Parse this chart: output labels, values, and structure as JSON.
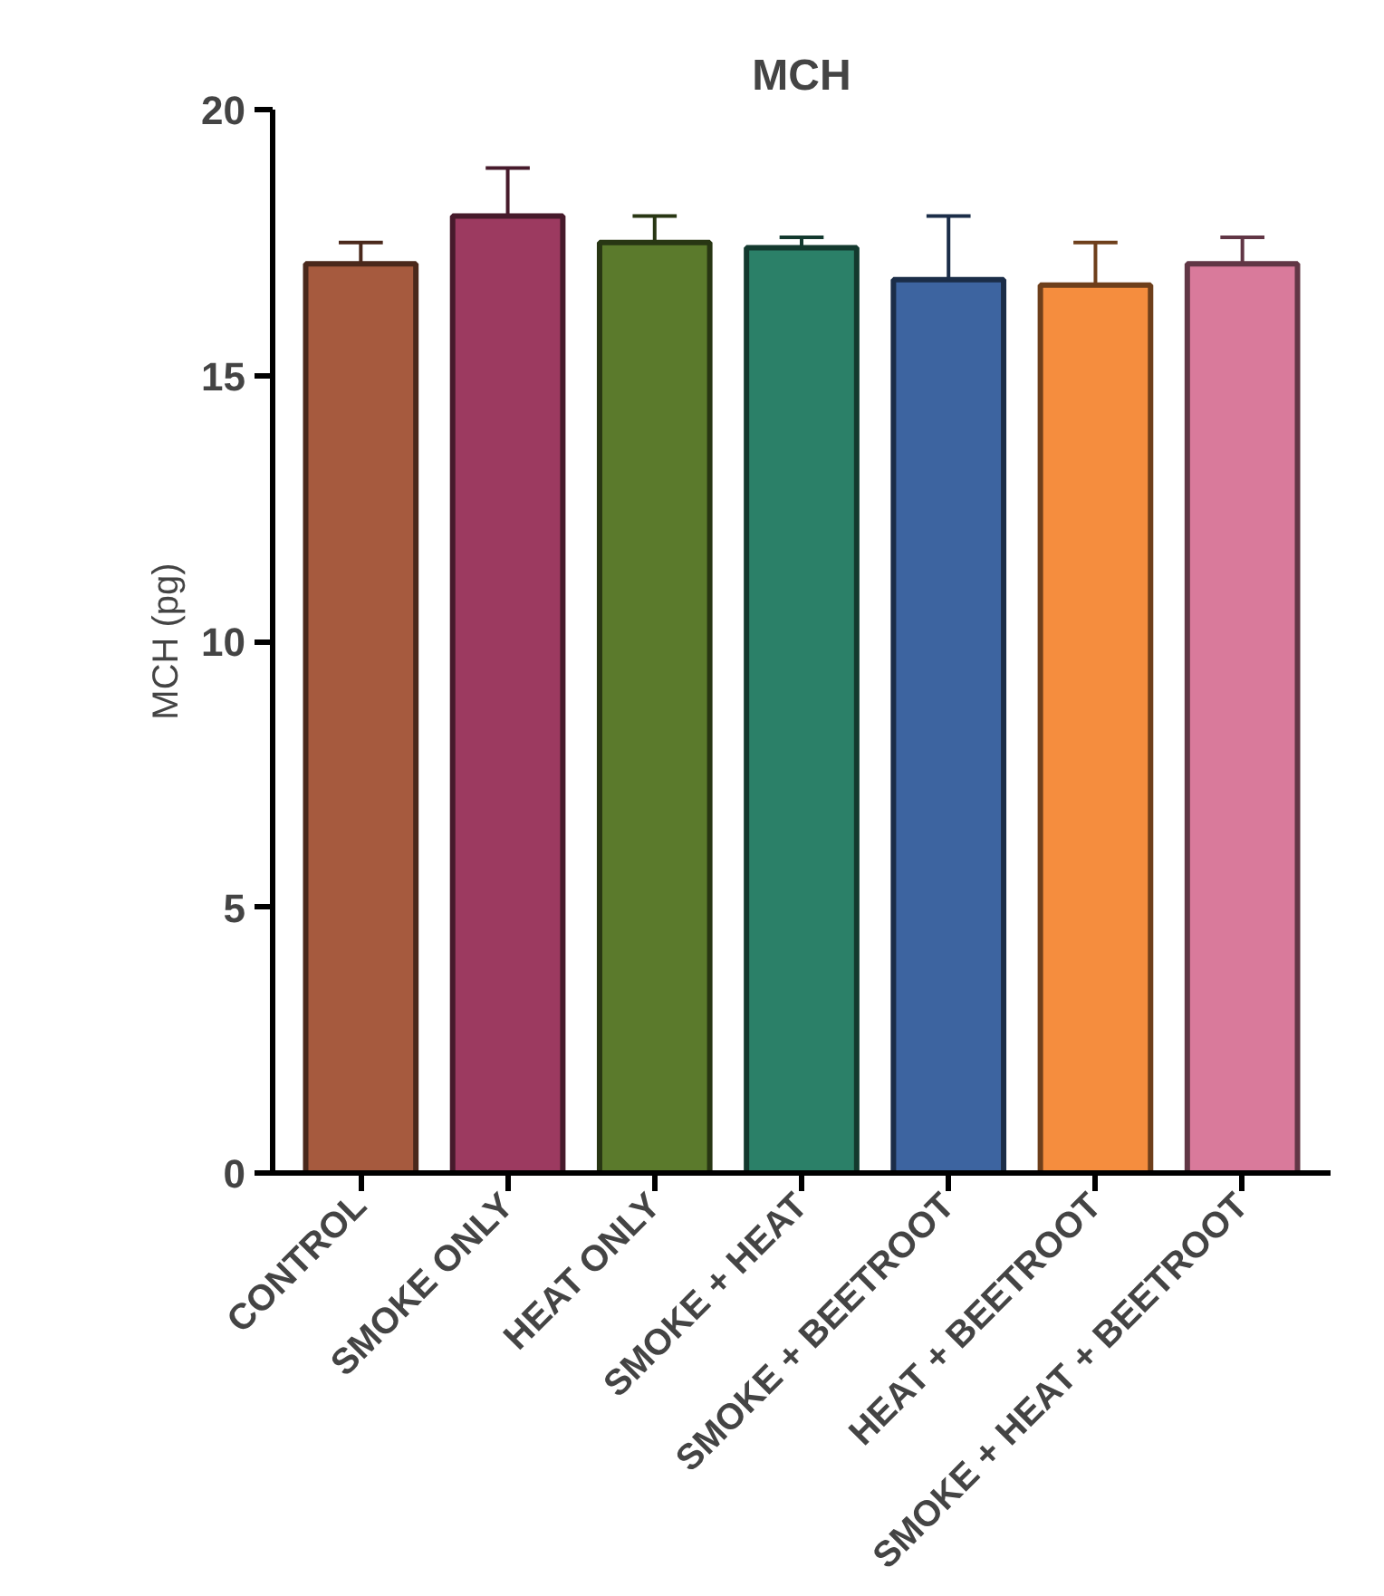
{
  "chart_data": {
    "type": "bar",
    "title": "MCH",
    "ylabel": "MCH (pg)",
    "categories": [
      "CONTROL",
      "SMOKE ONLY",
      "HEAT ONLY",
      "SMOKE + HEAT",
      "SMOKE + BEETROOT",
      "HEAT + BEETROOT",
      "SMOKE + HEAT + BEETROOT"
    ],
    "values": [
      17.1,
      18.0,
      17.5,
      17.4,
      16.8,
      16.7,
      17.1
    ],
    "errors": [
      [
        17.1,
        17.5
      ],
      [
        18.0,
        18.9
      ],
      [
        17.5,
        18.0
      ],
      [
        17.4,
        17.6
      ],
      [
        16.8,
        18.0
      ],
      [
        16.7,
        17.5
      ],
      [
        17.1,
        17.6
      ]
    ],
    "colors": [
      "#a65a3e",
      "#9c3a60",
      "#5b7a2c",
      "#2b8068",
      "#3d64a0",
      "#f58d3e",
      "#d97a9b"
    ],
    "ylim": [
      0,
      20
    ],
    "yticks": [
      0,
      5,
      10,
      15,
      20
    ],
    "grid": false
  }
}
